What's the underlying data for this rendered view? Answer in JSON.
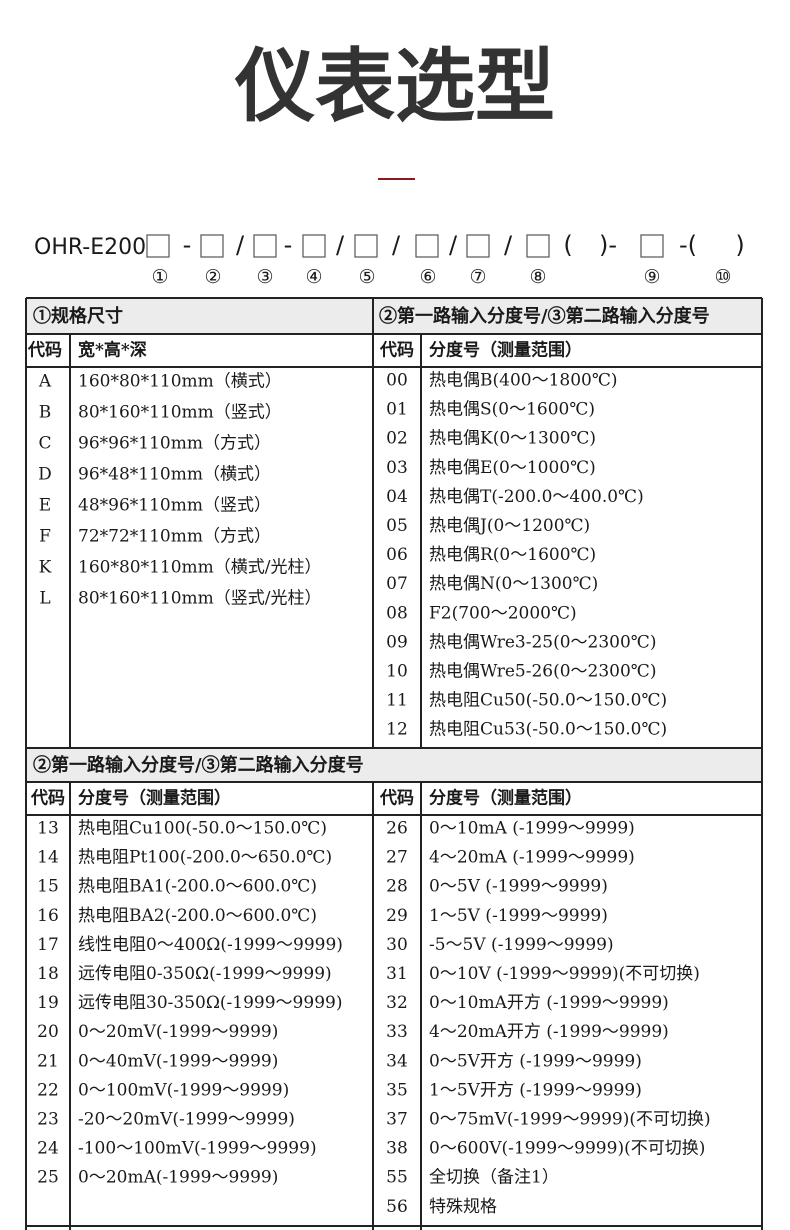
{
  "title": "仪表选型",
  "model": {
    "prefix": "OHR-E200",
    "separators": [
      "-",
      "/",
      "-",
      "/",
      "/",
      "/",
      "/",
      "(",
      ")-",
      "-(",
      ")"
    ],
    "markers": [
      "①",
      "②",
      "③",
      "④",
      "⑤",
      "⑥",
      "⑦",
      "⑧",
      "⑨",
      "⑩"
    ]
  },
  "section1": {
    "left": {
      "heading": "①规格尺寸",
      "columns": [
        "代码",
        "宽*高*深"
      ],
      "rows": [
        [
          "A",
          "160*80*110mm（横式）"
        ],
        [
          "B",
          "80*160*110mm（竖式）"
        ],
        [
          "C",
          "96*96*110mm（方式）"
        ],
        [
          "D",
          "96*48*110mm（横式）"
        ],
        [
          "E",
          "48*96*110mm（竖式）"
        ],
        [
          "F",
          "72*72*110mm（方式）"
        ],
        [
          "K",
          "160*80*110mm（横式/光柱）"
        ],
        [
          "L",
          "80*160*110mm（竖式/光柱）"
        ]
      ]
    },
    "right": {
      "heading": "②第一路输入分度号/③第二路输入分度号",
      "columns": [
        "代码",
        "分度号（测量范围）"
      ],
      "rows": [
        [
          "00",
          "热电偶B(400～1800℃)"
        ],
        [
          "01",
          "热电偶S(0～1600℃)"
        ],
        [
          "02",
          "热电偶K(0～1300℃)"
        ],
        [
          "03",
          "热电偶E(0～1000℃)"
        ],
        [
          "04",
          "热电偶T(-200.0～400.0℃)"
        ],
        [
          "05",
          "热电偶J(0～1200℃)"
        ],
        [
          "06",
          "热电偶R(0～1600℃)"
        ],
        [
          "07",
          "热电偶N(0～1300℃)"
        ],
        [
          "08",
          "F2(700～2000℃)"
        ],
        [
          "09",
          "热电偶Wre3-25(0～2300℃)"
        ],
        [
          "10",
          "热电偶Wre5-26(0～2300℃)"
        ],
        [
          "11",
          "热电阻Cu50(-50.0～150.0℃)"
        ],
        [
          "12",
          "热电阻Cu53(-50.0～150.0℃)"
        ]
      ]
    }
  },
  "section2": {
    "heading": "②第一路输入分度号/③第二路输入分度号",
    "left": {
      "columns": [
        "代码",
        "分度号（测量范围）"
      ],
      "rows": [
        [
          "13",
          "热电阻Cu100(-50.0～150.0℃)"
        ],
        [
          "14",
          "热电阻Pt100(-200.0～650.0℃)"
        ],
        [
          "15",
          "热电阻BA1(-200.0～600.0℃)"
        ],
        [
          "16",
          "热电阻BA2(-200.0～600.0℃)"
        ],
        [
          "17",
          "线性电阻0～400Ω(-1999～9999)"
        ],
        [
          "18",
          "远传电阻0-350Ω(-1999～9999)"
        ],
        [
          "19",
          "远传电阻30-350Ω(-1999～9999)"
        ],
        [
          "20",
          "0～20mV(-1999～9999)"
        ],
        [
          "21",
          "0～40mV(-1999～9999)"
        ],
        [
          "22",
          "0～100mV(-1999～9999)"
        ],
        [
          "23",
          "-20～20mV(-1999～9999)"
        ],
        [
          "24",
          "-100～100mV(-1999～9999)"
        ],
        [
          "25",
          "0～20mA(-1999～9999)"
        ]
      ]
    },
    "right": {
      "columns": [
        "代码",
        "分度号（测量范围）"
      ],
      "rows": [
        [
          "26",
          "0～10mA (-1999～9999)"
        ],
        [
          "27",
          "4～20mA (-1999～9999)"
        ],
        [
          "28",
          "0～5V (-1999～9999)"
        ],
        [
          "29",
          "1～5V (-1999～9999)"
        ],
        [
          "30",
          "-5～5V (-1999～9999)"
        ],
        [
          "31",
          "0～10V (-1999～9999)(不可切换)"
        ],
        [
          "32",
          "0～10mA开方 (-1999～9999)"
        ],
        [
          "33",
          "4～20mA开方 (-1999～9999)"
        ],
        [
          "34",
          "0～5V开方 (-1999～9999)"
        ],
        [
          "35",
          "1～5V开方 (-1999～9999)"
        ],
        [
          "37",
          "0～75mV(-1999～9999)(不可切换)"
        ],
        [
          "38",
          "0～600V(-1999～9999)(不可切换)"
        ],
        [
          "55",
          "全切换（备注1）"
        ],
        [
          "56",
          "特殊规格"
        ]
      ]
    }
  }
}
